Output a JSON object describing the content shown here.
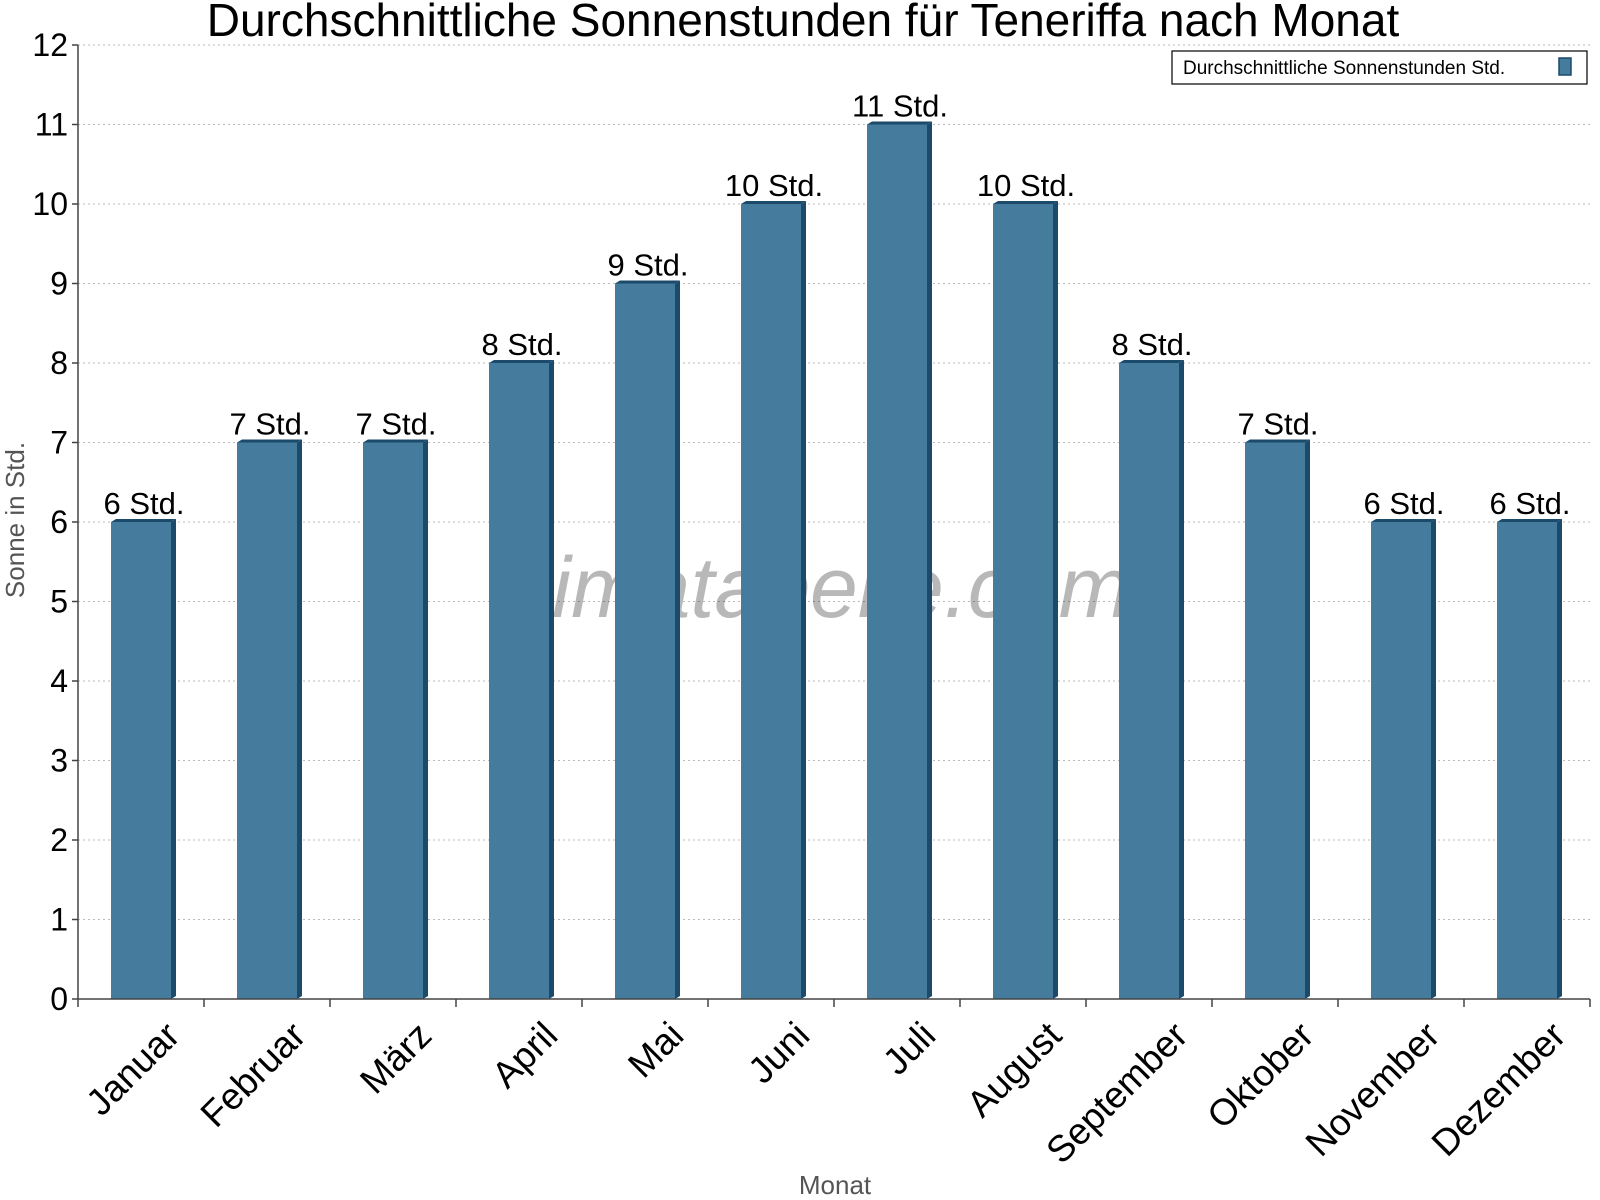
{
  "chart_data": {
    "type": "bar",
    "title": "Durchschnittliche Sonnenstunden für Teneriffa nach Monat",
    "xlabel": "Monat",
    "ylabel": "Sonne in Std.",
    "ylim": [
      0,
      12
    ],
    "yticks": [
      0,
      1,
      2,
      3,
      4,
      5,
      6,
      7,
      8,
      9,
      10,
      11,
      12
    ],
    "grid": true,
    "legend_position": "top-right",
    "categories": [
      "Januar",
      "Februar",
      "März",
      "April",
      "Mai",
      "Juni",
      "Juli",
      "August",
      "September",
      "Oktober",
      "November",
      "Dezember"
    ],
    "series": [
      {
        "name": "Durchschnittliche Sonnenstunden Std.",
        "values": [
          6,
          7,
          7,
          8,
          9,
          10,
          11,
          10,
          8,
          7,
          6,
          6
        ],
        "labels": [
          "6 Std.",
          "7 Std.",
          "7 Std.",
          "8 Std.",
          "9 Std.",
          "10 Std.",
          "11 Std.",
          "10 Std.",
          "8 Std.",
          "7 Std.",
          "6 Std.",
          "6 Std."
        ]
      }
    ],
    "colors": {
      "bar_face": "#457b9d",
      "bar_side": "#1c4a6b",
      "grid": "#bbbbbb",
      "axis": "#444444"
    }
  },
  "watermark": "klimatabelle.com"
}
